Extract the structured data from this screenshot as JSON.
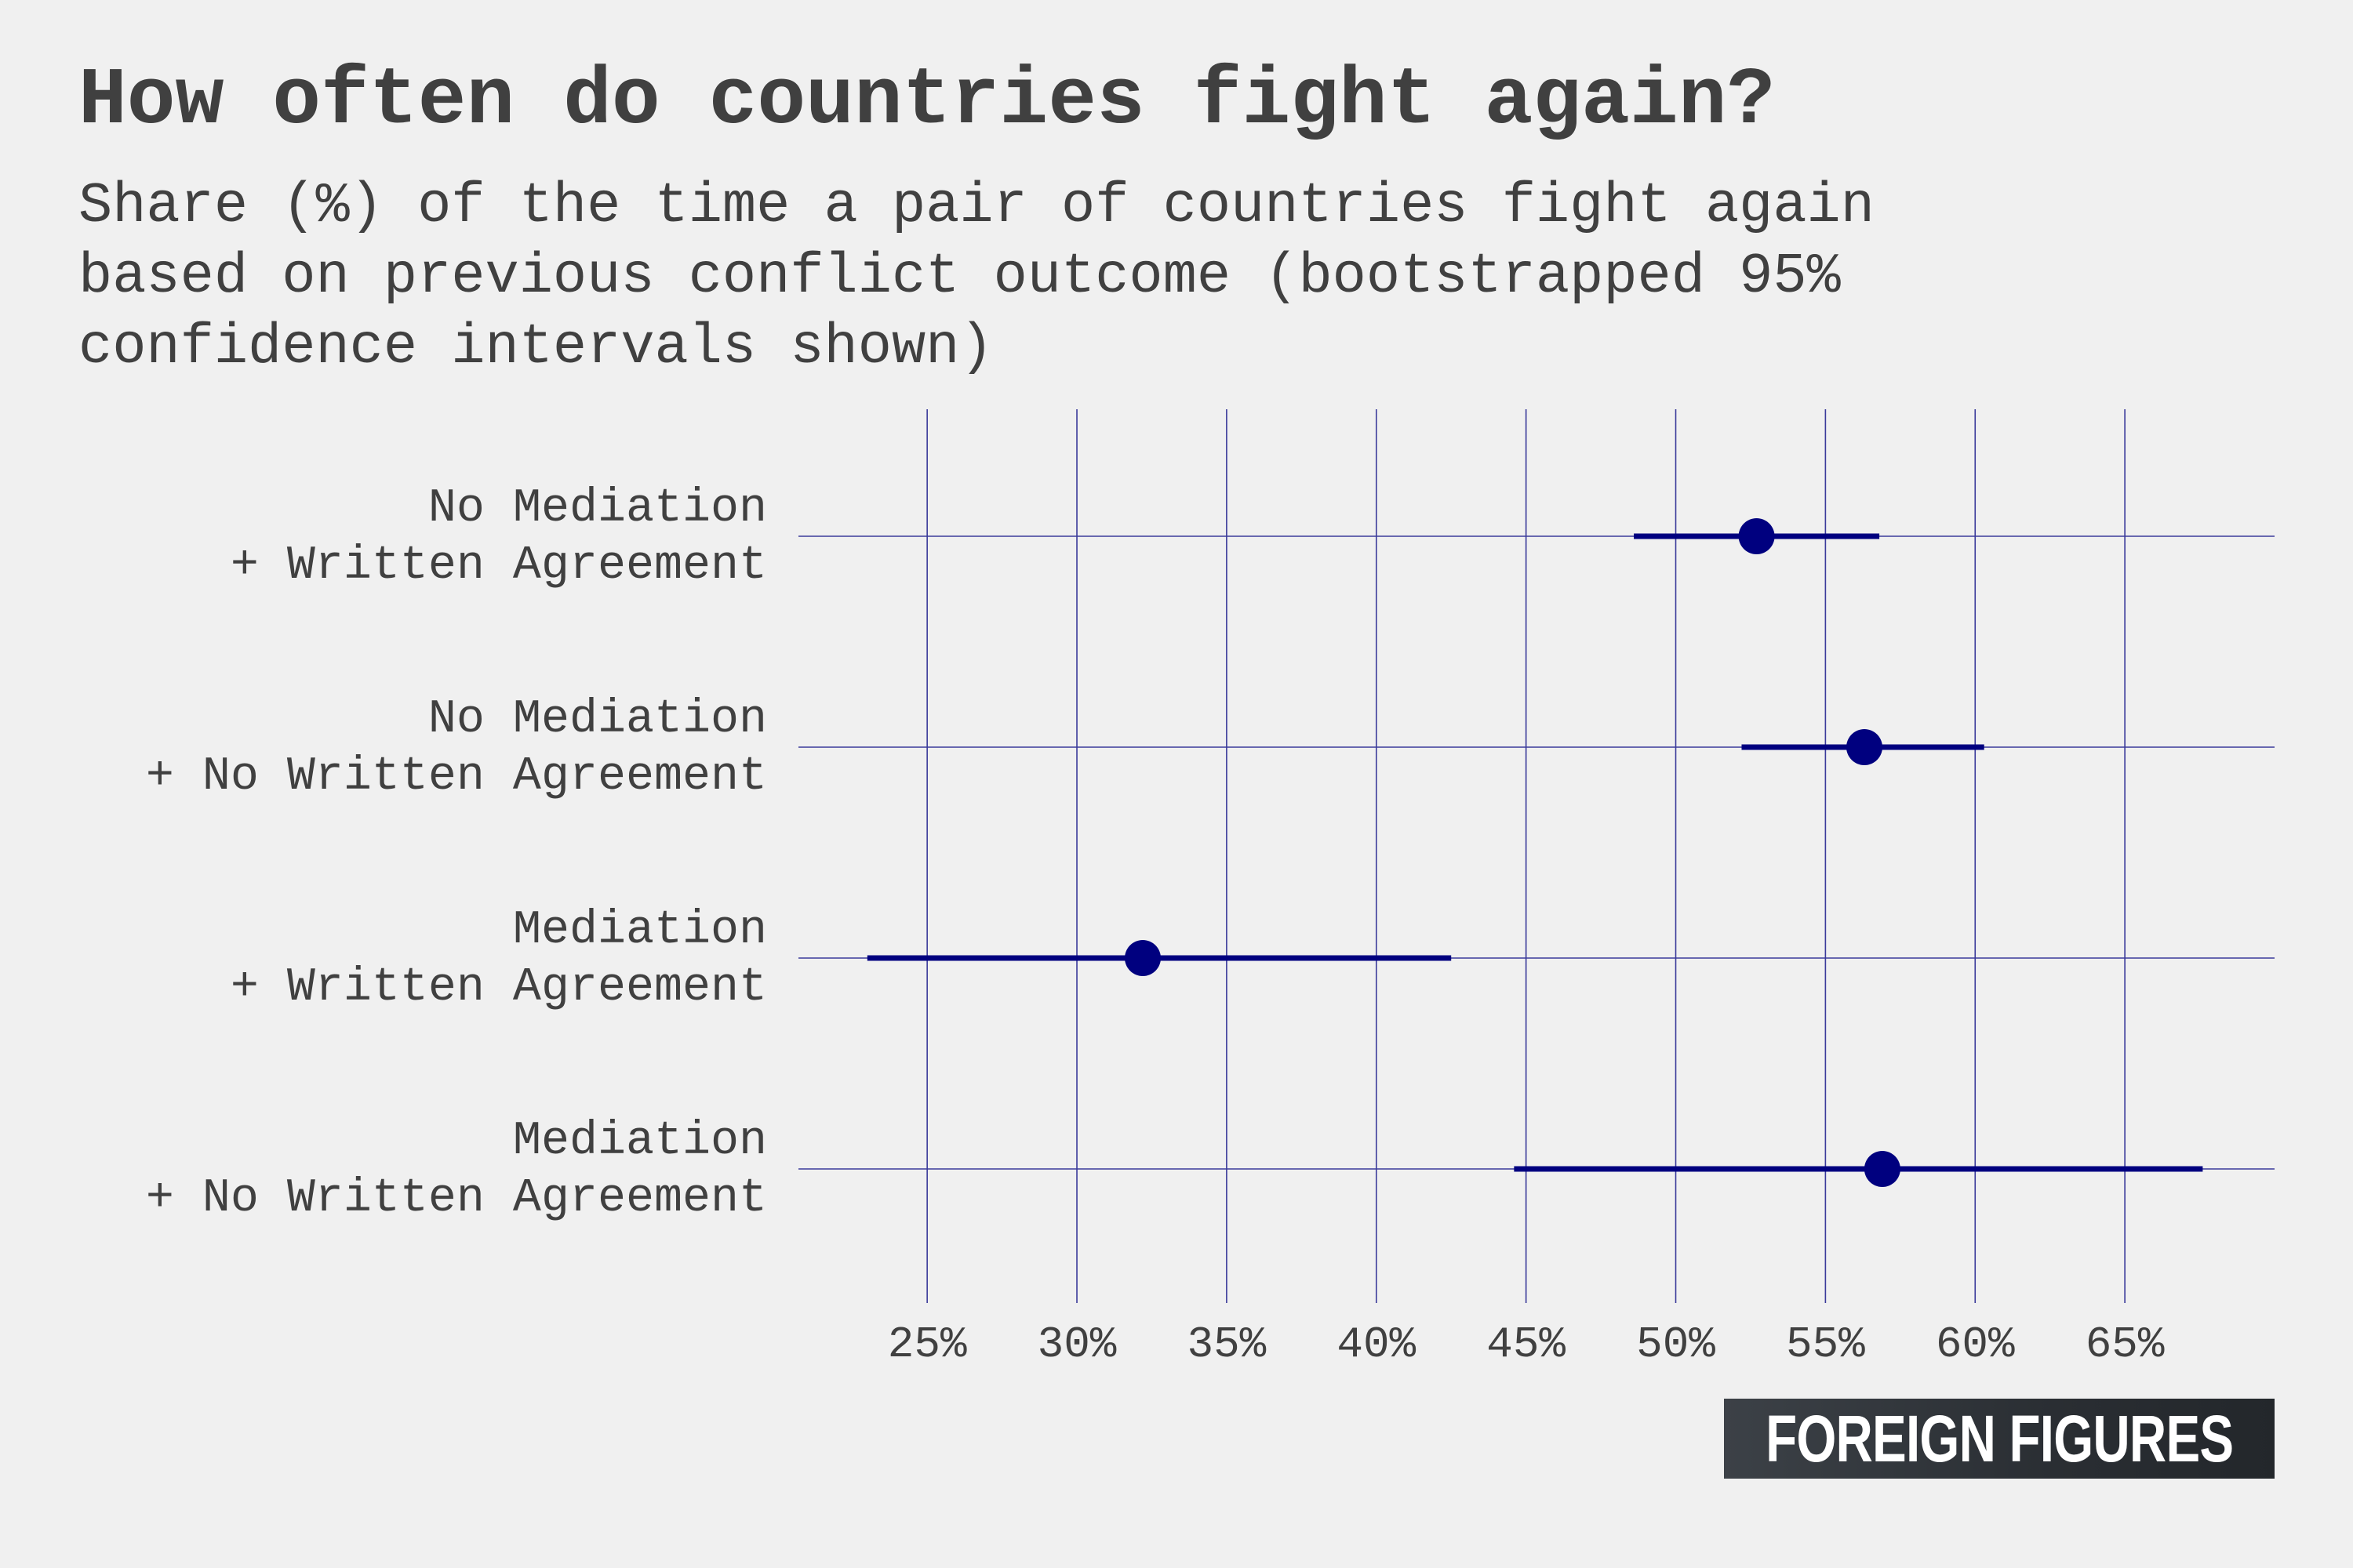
{
  "chart_data": {
    "type": "dot-interval",
    "title": "How often do countries fight again?",
    "subtitle_lines": [
      "Share (%) of the time a pair of countries fight again",
      "based on previous conflict outcome (bootstrapped 95%",
      "confidence intervals shown)"
    ],
    "xlim": [
      20.7,
      70
    ],
    "x_ticks": [
      25,
      30,
      35,
      40,
      45,
      50,
      55,
      60,
      65
    ],
    "x_tick_labels": [
      "25%",
      "30%",
      "35%",
      "40%",
      "45%",
      "50%",
      "55%",
      "60%",
      "65%"
    ],
    "grid": true,
    "categories": [
      {
        "label_lines": [
          "No Mediation",
          "+ Written Agreement"
        ],
        "estimate": 52.7,
        "ci": [
          48.6,
          56.8
        ]
      },
      {
        "label_lines": [
          "No Mediation",
          "+ No Written Agreement"
        ],
        "estimate": 56.3,
        "ci": [
          52.2,
          60.3
        ]
      },
      {
        "label_lines": [
          "Mediation",
          "+ Written Agreement"
        ],
        "estimate": 32.2,
        "ci": [
          23.0,
          42.5
        ]
      },
      {
        "label_lines": [
          "Mediation",
          "+ No Written Agreement"
        ],
        "estimate": 56.9,
        "ci": [
          44.6,
          67.6
        ]
      }
    ],
    "colors": {
      "point": "#00007f",
      "interval": "#00007f",
      "grid": "#3a3a9a",
      "text": "#404040",
      "background": "#f0f0f0"
    }
  },
  "brand": {
    "logo_text": "FOREIGN FIGURES"
  }
}
